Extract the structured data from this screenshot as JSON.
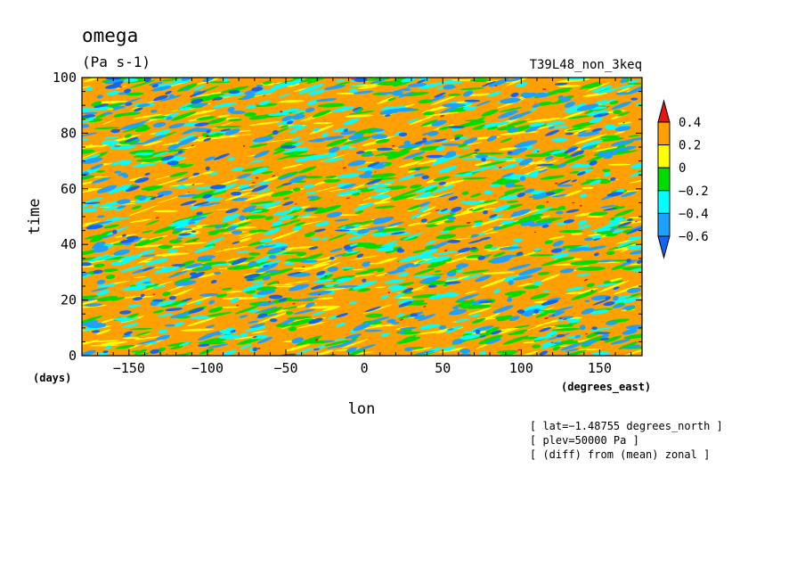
{
  "chart_data": {
    "type": "heatmap",
    "title": "omega",
    "units": "(Pa s-1)",
    "dataset": "T39L48_non_3keq",
    "xlabel": "lon",
    "x_units": "(degrees_east)",
    "ylabel": "time",
    "y_units": "(days)",
    "xlim": [
      -180,
      177
    ],
    "ylim": [
      0,
      100
    ],
    "x_ticks": [
      -150,
      -100,
      -50,
      0,
      50,
      100,
      150
    ],
    "x_tick_labels": [
      "−150",
      "−100",
      "−50",
      "0",
      "50",
      "100",
      "150"
    ],
    "y_ticks": [
      0,
      20,
      40,
      60,
      80,
      100
    ],
    "y_tick_labels": [
      "0",
      "20",
      "40",
      "60",
      "80",
      "100"
    ],
    "colorbar": {
      "levels": [
        -0.6,
        -0.4,
        -0.2,
        0,
        0.2,
        0.4
      ],
      "labels": [
        "−0.6",
        "−0.4",
        "−0.2",
        "0",
        "0.2",
        "0.4"
      ],
      "colors": [
        "#1464f0",
        "#1ea0ff",
        "#00ffff",
        "#00dc00",
        "#ffff00",
        "#ffa000",
        "#e61414"
      ],
      "extend": "both"
    },
    "annotations": [
      "[ lat=−1.48755 degrees_north ]",
      "[ plev=50000 Pa ]",
      "[ (diff) from (mean) zonal ]"
    ]
  }
}
